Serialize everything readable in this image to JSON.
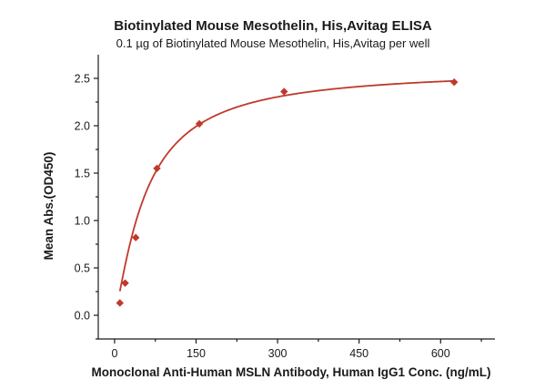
{
  "chart_data": {
    "type": "scatter",
    "title": "Biotinylated Mouse Mesothelin, His,Avitag ELISA",
    "subtitle": "0.1 µg of Biotinylated Mouse Mesothelin, His,Avitag per well",
    "xlabel": "Monoclonal Anti-Human MSLN Antibody, Human IgG1 Conc. (ng/mL)",
    "ylabel": "Mean Abs.(OD450)",
    "xlim": [
      -30,
      700
    ],
    "ylim": [
      -0.25,
      2.75
    ],
    "xticks": [
      0,
      150,
      300,
      450,
      600
    ],
    "yticks": [
      "0.0",
      "0.5",
      "1.0",
      "1.5",
      "2.0",
      "2.5"
    ],
    "color": "#c0392b",
    "marker": "diamond",
    "fit": "four-parameter logistic curve",
    "grid": false,
    "series": [
      {
        "x": [
          9.8,
          19.5,
          39,
          78,
          156,
          312,
          625
        ],
        "y": [
          0.13,
          0.34,
          0.82,
          1.55,
          2.02,
          2.36,
          2.46
        ]
      }
    ]
  }
}
